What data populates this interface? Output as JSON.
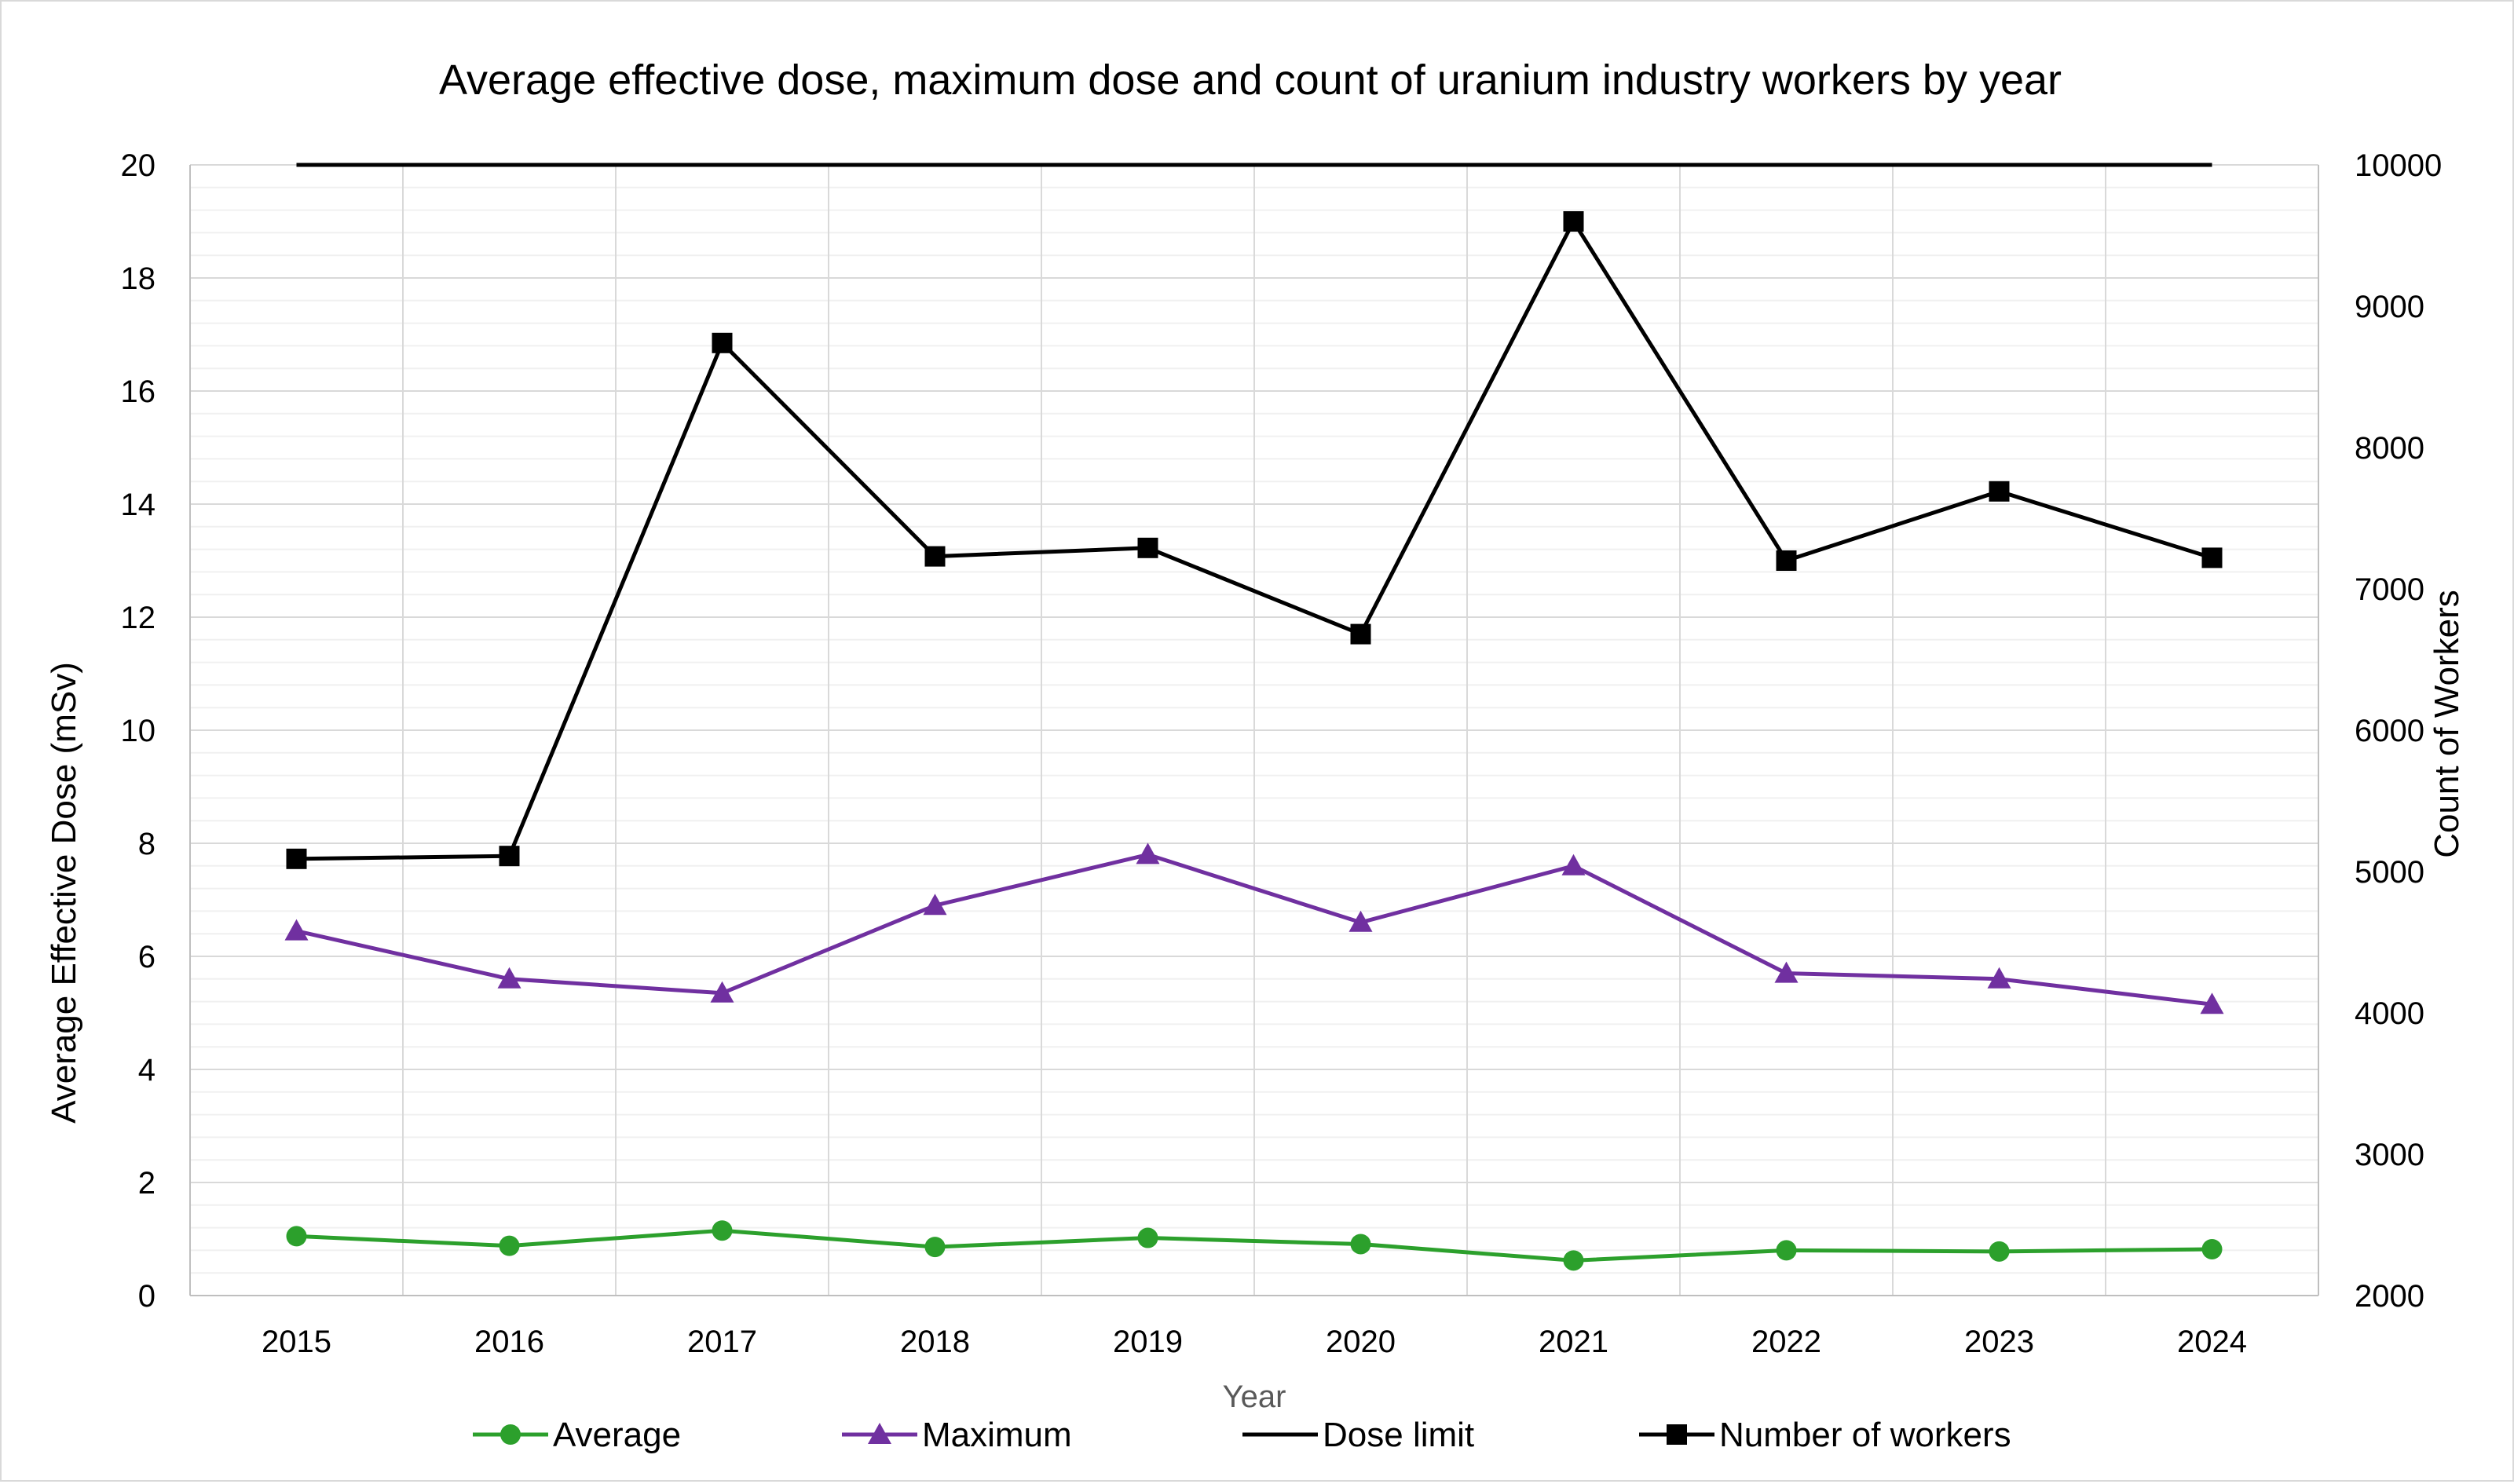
{
  "chart_data": {
    "type": "line",
    "title": "Average effective dose, maximum dose and count of uranium industry workers by year",
    "xlabel": "Year",
    "ylabel": "Average Effective Dose (mSv)",
    "y2label": "Count of Workers",
    "categories": [
      "2015",
      "2016",
      "2017",
      "2018",
      "2019",
      "2020",
      "2021",
      "2022",
      "2023",
      "2024"
    ],
    "ylim": [
      0,
      20
    ],
    "y2lim": [
      2000,
      10000
    ],
    "yticks": [
      "0",
      "2",
      "4",
      "6",
      "8",
      "10",
      "12",
      "14",
      "16",
      "18",
      "20"
    ],
    "y2ticks": [
      "2000",
      "3000",
      "4000",
      "5000",
      "6000",
      "7000",
      "8000",
      "9000",
      "10000"
    ],
    "grid": true,
    "legend_position": "bottom",
    "series": [
      {
        "name": "Average",
        "axis": "left",
        "marker": "circle",
        "color": "#2ca02c",
        "values": [
          1.05,
          0.88,
          1.15,
          0.86,
          1.02,
          0.91,
          0.62,
          0.8,
          0.78,
          0.82
        ]
      },
      {
        "name": "Maximum",
        "axis": "left",
        "marker": "triangle",
        "color": "#7030a0",
        "values": [
          6.45,
          5.6,
          5.35,
          6.9,
          7.8,
          6.6,
          7.6,
          5.7,
          5.6,
          5.15
        ]
      },
      {
        "name": "Dose limit",
        "axis": "left",
        "marker": "none",
        "color": "#000000",
        "values": [
          20,
          20,
          20,
          20,
          20,
          20,
          20,
          20,
          20,
          20
        ]
      },
      {
        "name": "Number of workers",
        "axis": "right",
        "marker": "square",
        "color": "#000000",
        "values": [
          5090,
          5110,
          8740,
          7230,
          7290,
          6680,
          9600,
          7200,
          7690,
          7220
        ]
      }
    ]
  }
}
